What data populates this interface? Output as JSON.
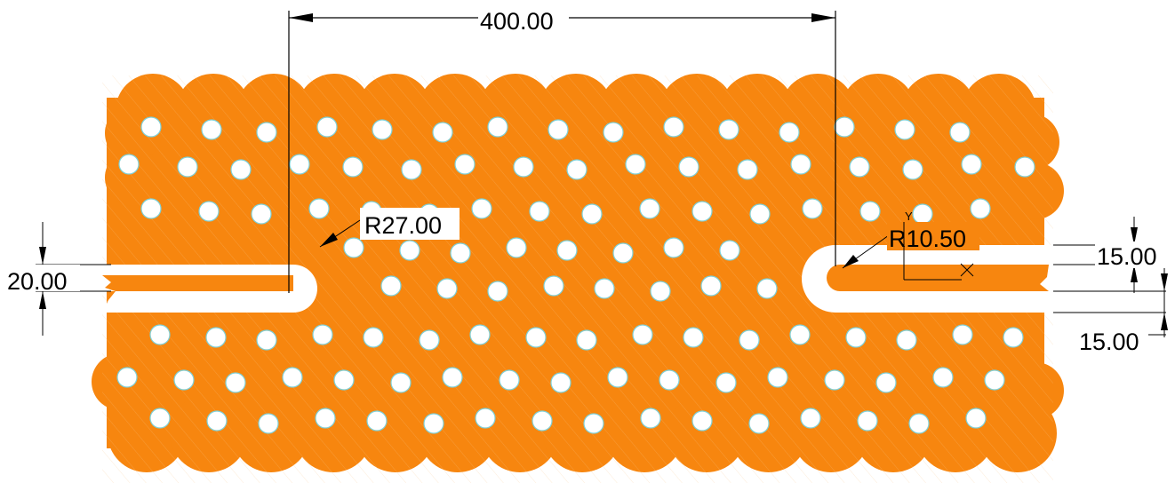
{
  "drawing": {
    "colors": {
      "part_fill": "#f7860f",
      "hatch": "#f4d9b6",
      "hole_fill": "#ffffff",
      "hole_outline": "#7fd0d6",
      "dimension": "#000000",
      "background": "#ffffff"
    },
    "dimensions": {
      "overall_width": "400.00",
      "left_slot_width": "20.00",
      "slot_radius_left": "R27.00",
      "slot_radius_right": "R10.50",
      "right_upper_offset": "15.00",
      "right_lower_offset": "15.00"
    },
    "ucs_icon": {
      "y_label": "Y"
    }
  }
}
